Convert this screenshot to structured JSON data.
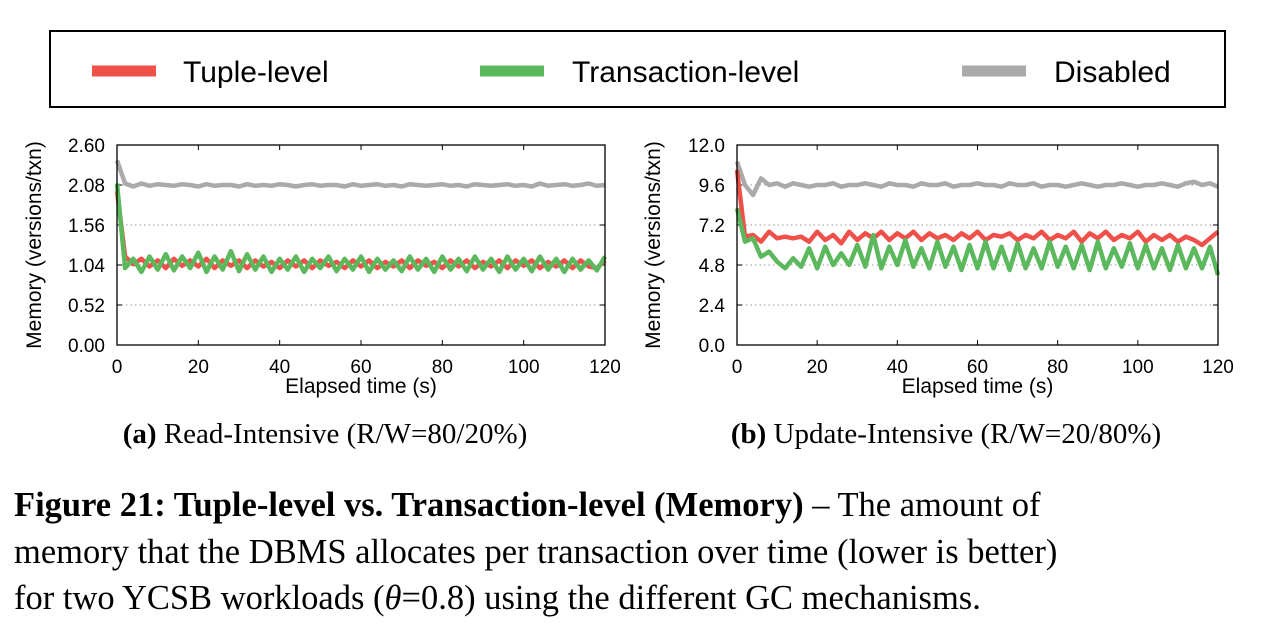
{
  "legend": [
    {
      "label": "Tuple-level",
      "color": "#f0504a"
    },
    {
      "label": "Transaction-level",
      "color": "#5cb85c"
    },
    {
      "label": "Disabled",
      "color": "#aaaaaa"
    }
  ],
  "chart_data": [
    {
      "type": "line",
      "ylabel": "Memory (versions/txn)",
      "xlabel": "Elapsed time (s)",
      "xlim": [
        0,
        120
      ],
      "ylim": [
        0,
        2.6
      ],
      "xticks": [
        "0",
        "20",
        "40",
        "60",
        "80",
        "100",
        "120"
      ],
      "yticks": [
        "0.00",
        "0.52",
        "1.04",
        "1.56",
        "2.08",
        "2.60"
      ],
      "grid": true,
      "x_step": 2,
      "series": [
        {
          "name": "Disabled",
          "values": [
            2.4,
            2.1,
            2.06,
            2.1,
            2.07,
            2.09,
            2.08,
            2.07,
            2.09,
            2.08,
            2.06,
            2.09,
            2.07,
            2.08,
            2.08,
            2.06,
            2.09,
            2.07,
            2.08,
            2.07,
            2.09,
            2.08,
            2.06,
            2.08,
            2.09,
            2.07,
            2.08,
            2.08,
            2.06,
            2.09,
            2.07,
            2.08,
            2.09,
            2.07,
            2.08,
            2.06,
            2.09,
            2.08,
            2.07,
            2.08,
            2.09,
            2.07,
            2.08,
            2.06,
            2.09,
            2.08,
            2.07,
            2.08,
            2.09,
            2.07,
            2.08,
            2.06,
            2.1,
            2.07,
            2.08,
            2.09,
            2.07,
            2.08,
            2.1,
            2.07,
            2.08
          ]
        },
        {
          "name": "Tuple-level",
          "values": [
            2.0,
            1.15,
            1.05,
            1.12,
            1.02,
            1.1,
            1.0,
            1.12,
            1.03,
            1.1,
            1.02,
            1.12,
            1.0,
            1.1,
            1.03,
            1.1,
            1.0,
            1.1,
            1.02,
            1.08,
            1.0,
            1.1,
            1.02,
            1.1,
            1.0,
            1.1,
            1.03,
            1.08,
            1.0,
            1.1,
            1.02,
            1.1,
            1.0,
            1.08,
            1.02,
            1.1,
            1.0,
            1.1,
            1.03,
            1.08,
            1.0,
            1.1,
            1.02,
            1.1,
            1.0,
            1.08,
            1.02,
            1.1,
            1.0,
            1.1,
            1.03,
            1.1,
            1.0,
            1.08,
            1.02,
            1.1,
            1.0,
            1.1,
            1.02,
            1.0,
            1.1
          ]
        },
        {
          "name": "Transaction-level",
          "values": [
            2.1,
            1.0,
            1.12,
            0.95,
            1.15,
            0.98,
            1.18,
            0.97,
            1.15,
            1.0,
            1.2,
            0.95,
            1.15,
            0.98,
            1.22,
            0.96,
            1.18,
            0.98,
            1.15,
            0.95,
            1.12,
            0.98,
            1.15,
            0.95,
            1.12,
            1.0,
            1.15,
            0.96,
            1.12,
            0.98,
            1.15,
            0.95,
            1.12,
            0.98,
            1.1,
            0.96,
            1.15,
            0.98,
            1.12,
            0.95,
            1.15,
            0.98,
            1.12,
            0.96,
            1.15,
            0.98,
            1.12,
            0.95,
            1.15,
            0.98,
            1.12,
            0.96,
            1.15,
            0.98,
            1.12,
            0.95,
            1.12,
            0.98,
            1.1,
            0.97,
            1.15
          ]
        }
      ]
    },
    {
      "type": "line",
      "ylabel": "Memory (versions/txn)",
      "xlabel": "Elapsed time (s)",
      "xlim": [
        0,
        120
      ],
      "ylim": [
        0,
        12
      ],
      "xticks": [
        "0",
        "20",
        "40",
        "60",
        "80",
        "100",
        "120"
      ],
      "yticks": [
        "0.0",
        "2.4",
        "4.8",
        "7.2",
        "9.6",
        "12.0"
      ],
      "grid": true,
      "x_step": 2,
      "series": [
        {
          "name": "Disabled",
          "values": [
            11.0,
            9.6,
            9.0,
            10.0,
            9.6,
            9.7,
            9.5,
            9.7,
            9.6,
            9.5,
            9.6,
            9.6,
            9.7,
            9.5,
            9.6,
            9.6,
            9.7,
            9.6,
            9.5,
            9.7,
            9.6,
            9.6,
            9.5,
            9.7,
            9.6,
            9.6,
            9.7,
            9.5,
            9.6,
            9.6,
            9.7,
            9.6,
            9.6,
            9.5,
            9.7,
            9.6,
            9.6,
            9.7,
            9.5,
            9.6,
            9.6,
            9.5,
            9.6,
            9.7,
            9.6,
            9.5,
            9.6,
            9.6,
            9.7,
            9.6,
            9.5,
            9.6,
            9.6,
            9.7,
            9.6,
            9.5,
            9.7,
            9.8,
            9.6,
            9.7,
            9.5
          ]
        },
        {
          "name": "Tuple-level",
          "values": [
            10.5,
            6.5,
            6.6,
            6.2,
            6.8,
            6.4,
            6.5,
            6.4,
            6.5,
            6.2,
            6.8,
            6.3,
            6.6,
            6.1,
            6.8,
            6.3,
            6.7,
            6.4,
            6.8,
            6.3,
            6.7,
            6.4,
            6.8,
            6.3,
            6.7,
            6.4,
            6.6,
            6.3,
            6.7,
            6.4,
            6.8,
            6.3,
            6.6,
            6.5,
            6.7,
            6.3,
            6.6,
            6.4,
            6.8,
            6.3,
            6.6,
            6.4,
            6.8,
            6.2,
            6.7,
            6.4,
            6.8,
            6.3,
            6.6,
            6.4,
            6.8,
            6.2,
            6.6,
            6.3,
            6.6,
            6.2,
            6.5,
            6.3,
            6.0,
            6.4,
            6.8
          ]
        },
        {
          "name": "Transaction-level",
          "values": [
            8.2,
            6.2,
            6.4,
            5.3,
            5.6,
            5.0,
            4.6,
            5.2,
            4.7,
            5.8,
            4.6,
            5.9,
            4.8,
            5.5,
            4.8,
            6.0,
            4.7,
            6.6,
            4.6,
            5.9,
            4.8,
            6.3,
            4.7,
            5.8,
            4.6,
            6.2,
            4.7,
            5.9,
            4.5,
            6.0,
            4.6,
            6.2,
            4.6,
            5.9,
            4.5,
            6.1,
            4.6,
            5.8,
            4.6,
            6.2,
            4.7,
            5.9,
            4.6,
            6.0,
            4.5,
            6.2,
            4.6,
            5.8,
            4.7,
            6.1,
            4.6,
            6.0,
            4.6,
            5.8,
            4.5,
            6.0,
            4.6,
            5.8,
            4.6,
            5.9,
            4.2
          ]
        }
      ]
    }
  ],
  "subcaptions": [
    {
      "tag": "(a)",
      "text": " Read-Intensive (R/W=80/20%)"
    },
    {
      "tag": "(b)",
      "text": " Update-Intensive (R/W=20/80%)"
    }
  ],
  "caption": {
    "bold": "Figure 21: Tuple-level vs. Transaction-level (Memory)",
    "line1_rest": " – The amount of",
    "line2": "memory that the DBMS allocates per transaction over time (lower is better)",
    "line3_pre": "for two YCSB workloads (",
    "theta": "θ",
    "line3_post": "=0.8) using the different GC mechanisms."
  }
}
